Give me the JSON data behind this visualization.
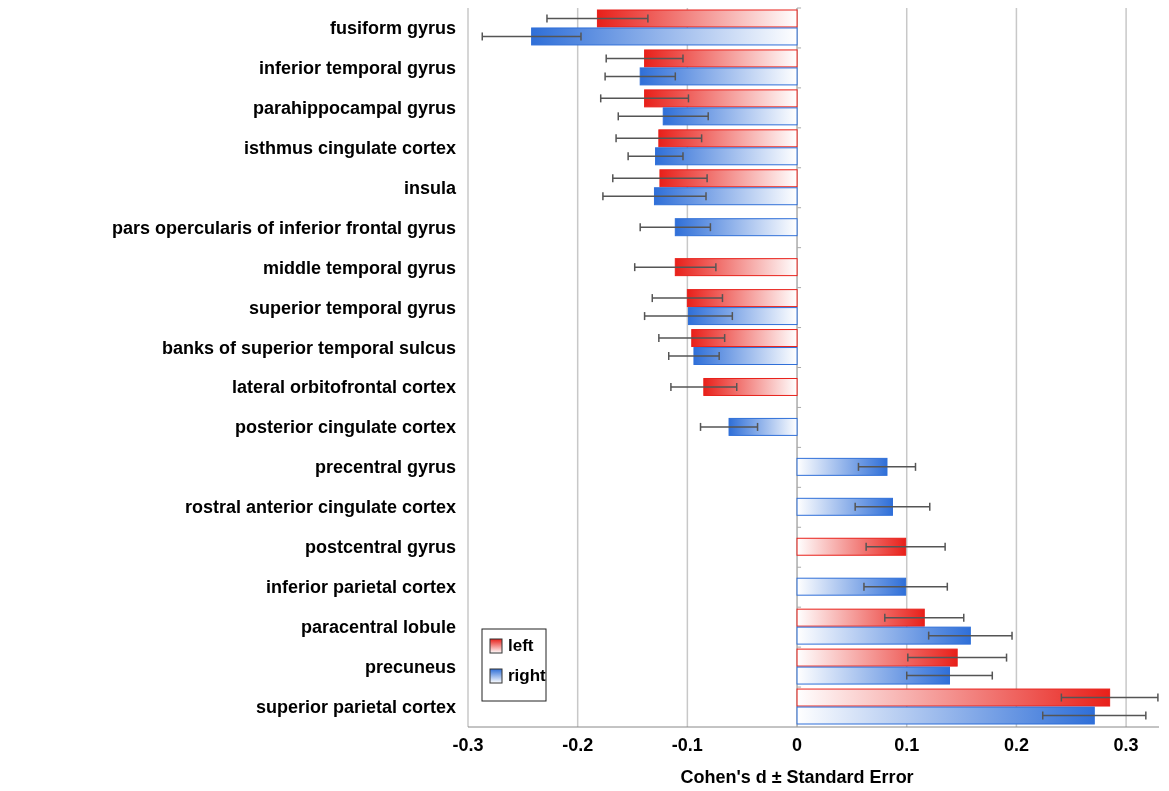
{
  "chart_data": {
    "type": "bar",
    "orientation": "horizontal",
    "xlabel": "Cohen's d ± Standard Error",
    "categories": [
      "fusiform gyrus",
      "inferior temporal gyrus",
      "parahippocampal gyrus",
      "isthmus cingulate cortex",
      "insula",
      "pars opercularis of inferior frontal gyrus",
      "middle temporal gyrus",
      "superior temporal gyrus",
      "banks of superior temporal sulcus",
      "lateral orbitofrontal cortex",
      "posterior cingulate cortex",
      "precentral gyrus",
      "rostral anterior cingulate cortex",
      "postcentral gyrus",
      "inferior parietal cortex",
      "paracentral lobule",
      "precuneus",
      "superior parietal cortex"
    ],
    "series": [
      {
        "name": "left",
        "color": "#e8201a",
        "values": [
          -0.182,
          -0.139,
          -0.139,
          -0.126,
          -0.125,
          null,
          -0.111,
          -0.1,
          -0.096,
          -0.085,
          null,
          null,
          null,
          0.099,
          null,
          0.116,
          0.146,
          0.285
        ],
        "errors": [
          0.046,
          0.035,
          0.04,
          0.039,
          0.043,
          null,
          0.037,
          0.032,
          0.03,
          0.03,
          null,
          null,
          null,
          0.036,
          null,
          0.036,
          0.045,
          0.044
        ]
      },
      {
        "name": "right",
        "color": "#2f6fd8",
        "values": [
          -0.242,
          -0.143,
          -0.122,
          -0.129,
          -0.13,
          -0.111,
          null,
          -0.099,
          -0.094,
          null,
          -0.062,
          0.082,
          0.087,
          null,
          0.099,
          0.158,
          0.139,
          0.271
        ],
        "errors": [
          0.045,
          0.032,
          0.041,
          0.025,
          0.047,
          0.032,
          null,
          0.04,
          0.023,
          null,
          0.026,
          0.026,
          0.034,
          null,
          0.038,
          0.038,
          0.039,
          0.047
        ]
      }
    ],
    "xlim": [
      -0.3,
      0.33
    ],
    "xticks": [
      -0.3,
      -0.2,
      -0.1,
      0,
      0.1,
      0.2,
      0.3
    ],
    "grid": "x",
    "legend": "bottom left"
  }
}
